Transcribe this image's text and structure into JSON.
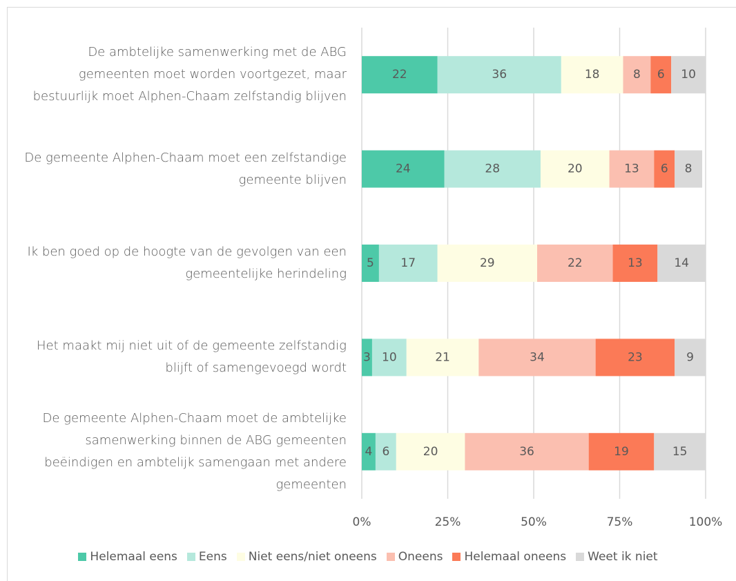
{
  "chart_data": {
    "type": "stacked-bar-horizontal",
    "categories": [
      "De ambtelijke samenwerking met de ABG gemeenten moet worden voortgezet, maar bestuurlijk moet Alphen-Chaam zelfstandig blijven",
      "De gemeente Alphen-Chaam moet een zelfstandige gemeente blijven",
      "Ik ben goed op de hoogte van de gevolgen van een gemeentelijke herindeling",
      "Het maakt mij niet uit of de gemeente zelfstandig blijft of samengevoegd wordt",
      "De gemeente Alphen-Chaam moet de ambtelijke samenwerking binnen de ABG gemeenten beëindigen en ambtelijk samengaan met andere gemeenten"
    ],
    "series": [
      {
        "name": "Helemaal eens",
        "color": "#4dc9a8",
        "values": [
          22,
          24,
          5,
          3,
          4
        ]
      },
      {
        "name": "Eens",
        "color": "#b5e8dc",
        "values": [
          36,
          28,
          17,
          10,
          6
        ]
      },
      {
        "name": "Niet eens/niet oneens",
        "color": "#fefde3",
        "values": [
          18,
          20,
          29,
          21,
          20
        ]
      },
      {
        "name": "Oneens",
        "color": "#fbbfb0",
        "values": [
          8,
          13,
          22,
          34,
          36
        ]
      },
      {
        "name": "Helemaal oneens",
        "color": "#fb7a57",
        "values": [
          6,
          6,
          13,
          23,
          19
        ]
      },
      {
        "name": "Weet ik niet",
        "color": "#d9d9d9",
        "values": [
          10,
          8,
          14,
          9,
          15
        ]
      }
    ],
    "xlim": [
      0,
      100
    ],
    "xticks": [
      {
        "value": 0,
        "label": "0%"
      },
      {
        "value": 25,
        "label": "25%"
      },
      {
        "value": 50,
        "label": "50%"
      },
      {
        "value": 75,
        "label": "75%"
      },
      {
        "value": 100,
        "label": "100%"
      }
    ],
    "grid": true,
    "legend": "bottom"
  }
}
